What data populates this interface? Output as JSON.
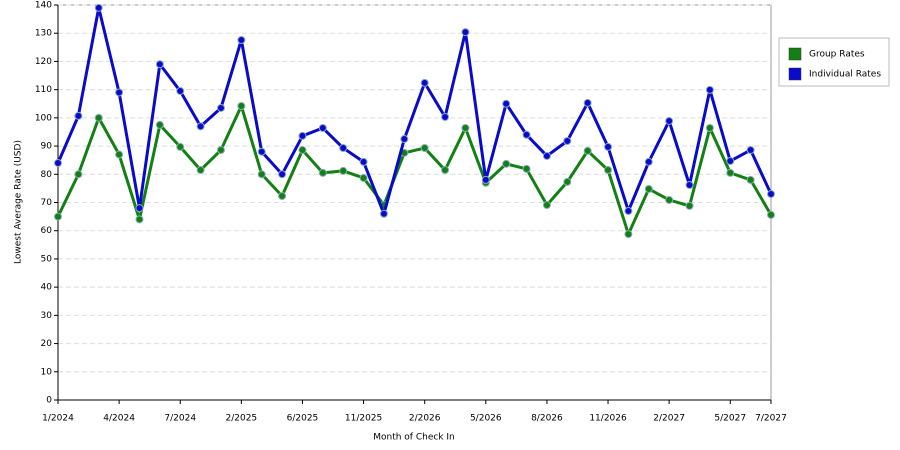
{
  "chart_data": {
    "type": "line",
    "y_label": "Lowest Average Rate (USD)",
    "x_label": "Month of Check In",
    "categories": [
      "1/2024",
      null,
      null,
      "4/2024",
      null,
      null,
      "7/2024",
      null,
      null,
      "2/2025",
      null,
      null,
      "6/2025",
      null,
      null,
      "11/2025",
      null,
      null,
      "2/2026",
      null,
      null,
      "5/2026",
      null,
      null,
      "8/2026",
      null,
      null,
      "11/2026",
      null,
      null,
      "2/2027",
      null,
      null,
      "5/2027",
      null,
      "7/2027"
    ],
    "series": [
      {
        "name": "Group Rates",
        "color": "#138013",
        "values": [
          65,
          80,
          100,
          87,
          64,
          97.5,
          89.7,
          81.5,
          88.6,
          104.2,
          80,
          72.3,
          88.6,
          80.5,
          81.2,
          78.7,
          69.1,
          87.6,
          89.3,
          81.5,
          96.4,
          77,
          83.7,
          81.9,
          69.1,
          77.3,
          88.3,
          81.5,
          58.8,
          74.8,
          70.9,
          68.8,
          96.4,
          80.5,
          78,
          65.6
        ]
      },
      {
        "name": "Individual Rates",
        "color": "#0a0acc",
        "values": [
          84,
          100.7,
          139,
          109,
          68,
          119,
          109.5,
          97,
          103.5,
          127.6,
          88,
          80,
          93.6,
          96.4,
          89.3,
          84.4,
          66,
          92.5,
          112.4,
          100.3,
          130.4,
          78,
          105,
          94,
          86.5,
          91.8,
          105.3,
          89.7,
          67,
          84.4,
          98.9,
          76.2,
          109.9,
          84.7,
          88.6,
          73
        ]
      }
    ],
    "ylim": [
      0,
      140
    ],
    "yticks": [
      0,
      10,
      20,
      30,
      40,
      50,
      60,
      70,
      80,
      90,
      100,
      110,
      120,
      130,
      140
    ],
    "grid": true,
    "legend": "right"
  }
}
